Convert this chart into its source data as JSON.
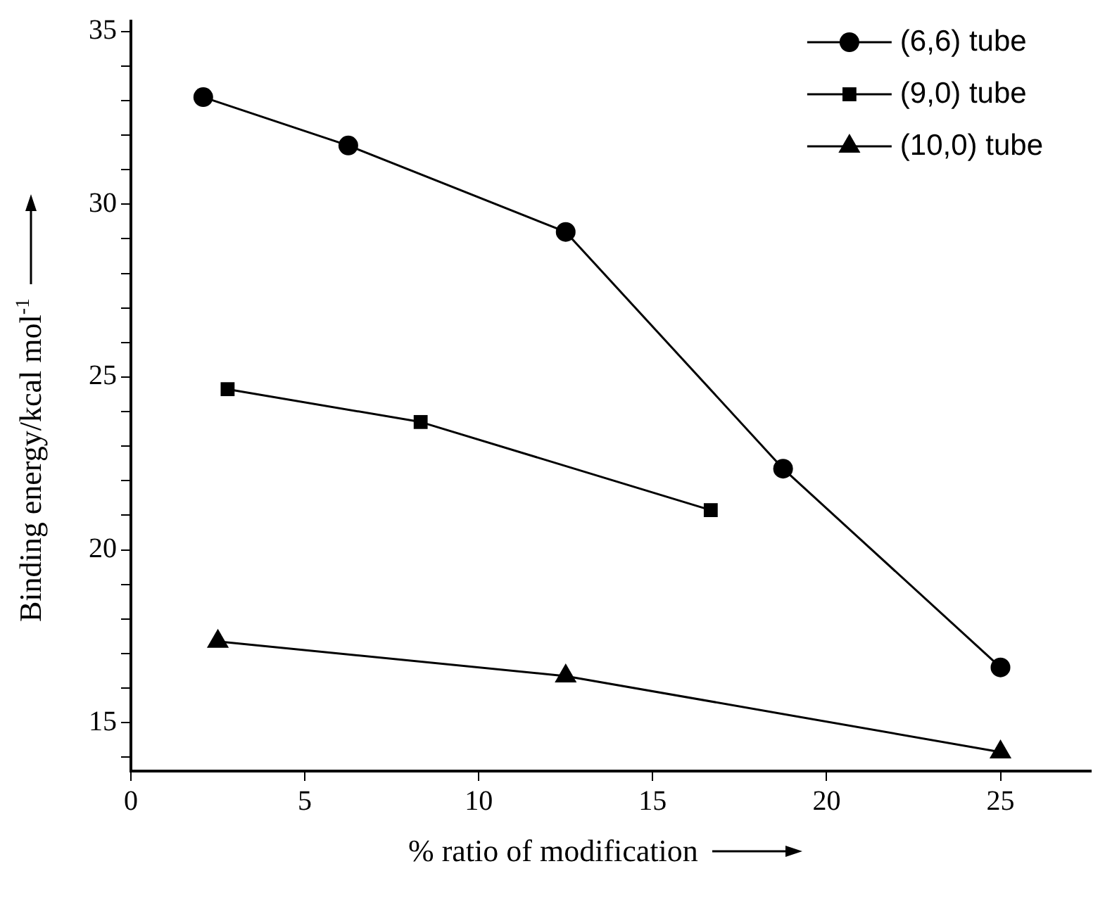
{
  "chart_data": {
    "type": "line",
    "xlabel": "% ratio of modification",
    "ylabel": "Binding energy/kcal mol$^{-1}$",
    "xlim": [
      0,
      27.6
    ],
    "xticks": [
      0,
      5,
      10,
      15,
      20,
      25
    ],
    "ylim": [
      13.6,
      35.3
    ],
    "yticks": [
      {
        "value": 14,
        "label": null
      },
      15,
      {
        "value": 16,
        "label": null
      },
      {
        "value": 17,
        "label": null
      },
      {
        "value": 18,
        "label": null
      },
      {
        "value": 19,
        "label": null
      },
      20,
      {
        "value": 21,
        "label": null
      },
      {
        "value": 22,
        "label": null
      },
      {
        "value": 23,
        "label": null
      },
      {
        "value": 24,
        "label": null
      },
      25,
      {
        "value": 26,
        "label": null
      },
      {
        "value": 27,
        "label": null
      },
      {
        "value": 28,
        "label": null
      },
      {
        "value": 29,
        "label": null
      },
      30,
      {
        "value": 31,
        "label": null
      },
      {
        "value": 32,
        "label": null
      },
      {
        "value": 33,
        "label": null
      },
      {
        "value": 34,
        "label": null
      },
      35
    ],
    "grid": false,
    "legend": "top right",
    "line_style": "solid",
    "series": [
      {
        "name": "(6,6) tube",
        "color": "#000000",
        "marker": "circle",
        "x": [
          2.08,
          6.25,
          12.5,
          18.75,
          25
        ],
        "values": [
          33.1,
          31.7,
          29.2,
          22.35,
          16.6
        ]
      },
      {
        "name": "(9,0) tube",
        "color": "#000000",
        "marker": "square",
        "x": [
          2.78,
          8.33,
          16.67
        ],
        "values": [
          24.65,
          23.7,
          21.15
        ]
      },
      {
        "name": "(10,0) tube",
        "color": "#000000",
        "marker": "triangle",
        "x": [
          2.5,
          12.5,
          25
        ],
        "values": [
          17.35,
          16.35,
          14.15
        ]
      }
    ]
  }
}
